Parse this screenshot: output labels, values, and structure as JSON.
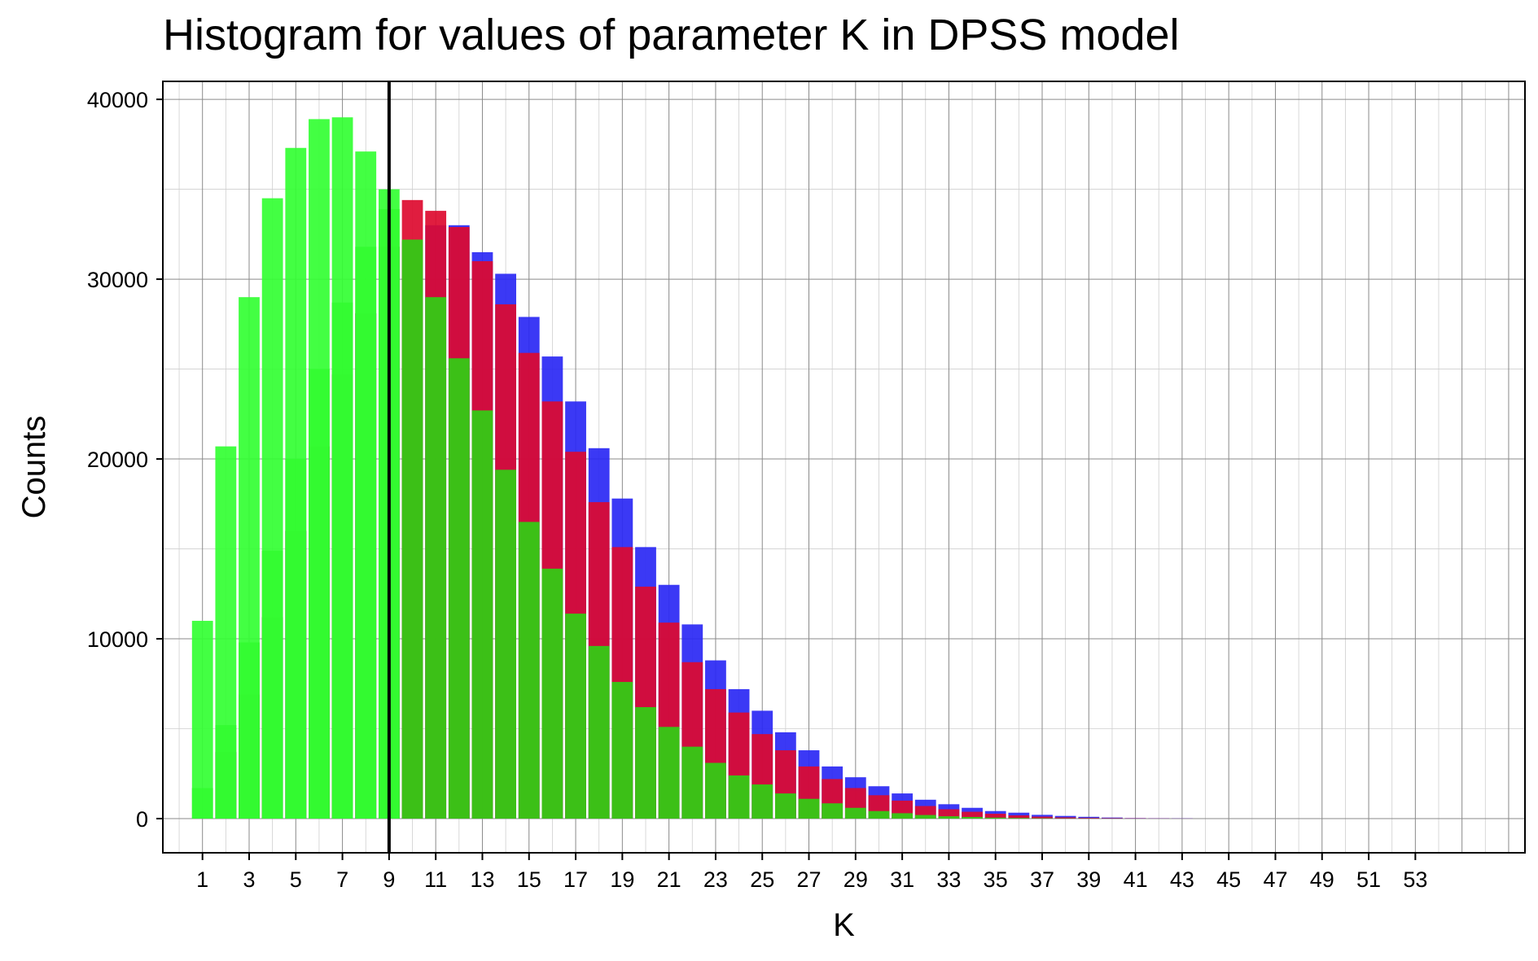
{
  "chart_data": {
    "type": "bar",
    "title": "Histogram for values of parameter K in DPSS model",
    "xlabel": "K",
    "ylabel": "Counts",
    "x_range": [
      -0.7,
      57.7
    ],
    "ylim": [
      -1900,
      41000
    ],
    "y_ticks": [
      0,
      10000,
      20000,
      30000,
      40000
    ],
    "x_ticks": [
      1,
      3,
      5,
      7,
      9,
      11,
      13,
      15,
      17,
      19,
      21,
      23,
      25,
      27,
      29,
      31,
      33,
      35,
      37,
      39,
      41,
      43,
      45,
      47,
      49,
      51,
      53
    ],
    "grid": true,
    "legend": "none",
    "vline": {
      "x": 9,
      "color": "#000000"
    },
    "colors": {
      "blue": "#2a28f4",
      "red": "#dd0a2f",
      "green": "#2fcf14",
      "light_green": "#33ff33"
    },
    "categories": [
      1,
      2,
      3,
      4,
      5,
      6,
      7,
      8,
      9,
      10,
      11,
      12,
      13,
      14,
      15,
      16,
      17,
      18,
      19,
      20,
      21,
      22,
      23,
      24,
      25,
      26,
      27,
      28,
      29,
      30,
      31,
      32,
      33,
      34,
      35,
      36,
      37,
      38,
      39,
      40,
      41,
      42,
      43
    ],
    "series": [
      {
        "color": "blue",
        "values": [
          0,
          3700,
          6900,
          11200,
          16000,
          20700,
          24700,
          28100,
          31800,
          32100,
          33000,
          33000,
          31500,
          30300,
          27900,
          25700,
          23200,
          20600,
          17800,
          15100,
          13000,
          10800,
          8800,
          7200,
          6000,
          4800,
          3800,
          2900,
          2300,
          1800,
          1400,
          1050,
          800,
          600,
          420,
          330,
          210,
          150,
          100,
          60,
          30,
          15,
          10
        ]
      },
      {
        "color": "red",
        "values": [
          0,
          3700,
          6900,
          11200,
          16000,
          20700,
          24700,
          28100,
          31800,
          34400,
          33800,
          32900,
          31000,
          28600,
          25900,
          23200,
          20400,
          17600,
          15100,
          12900,
          10900,
          8700,
          7200,
          5900,
          4700,
          3800,
          2900,
          2200,
          1700,
          1300,
          1000,
          700,
          520,
          380,
          270,
          180,
          110,
          70,
          40,
          25,
          15,
          8,
          4
        ]
      },
      {
        "color": "green",
        "values": [
          1700,
          5200,
          9800,
          14900,
          20000,
          25000,
          28700,
          31800,
          33900,
          32200,
          29000,
          25600,
          22700,
          19400,
          16500,
          13900,
          11400,
          9600,
          7600,
          6200,
          5100,
          4000,
          3100,
          2400,
          1900,
          1400,
          1100,
          850,
          600,
          420,
          300,
          200,
          130,
          90,
          55,
          35,
          20,
          12,
          8,
          4,
          2,
          1,
          0
        ]
      },
      {
        "color": "light_green",
        "values": [
          11000,
          20700,
          29000,
          34500,
          37300,
          38900,
          39000,
          37100,
          35000,
          0,
          0,
          0,
          0,
          0,
          0,
          0,
          0,
          0,
          0,
          0,
          0,
          0,
          0,
          0,
          0,
          0,
          0,
          0,
          0,
          0,
          0,
          0,
          0,
          0,
          0,
          0,
          0,
          0,
          0,
          0,
          0,
          0,
          0
        ]
      }
    ]
  }
}
